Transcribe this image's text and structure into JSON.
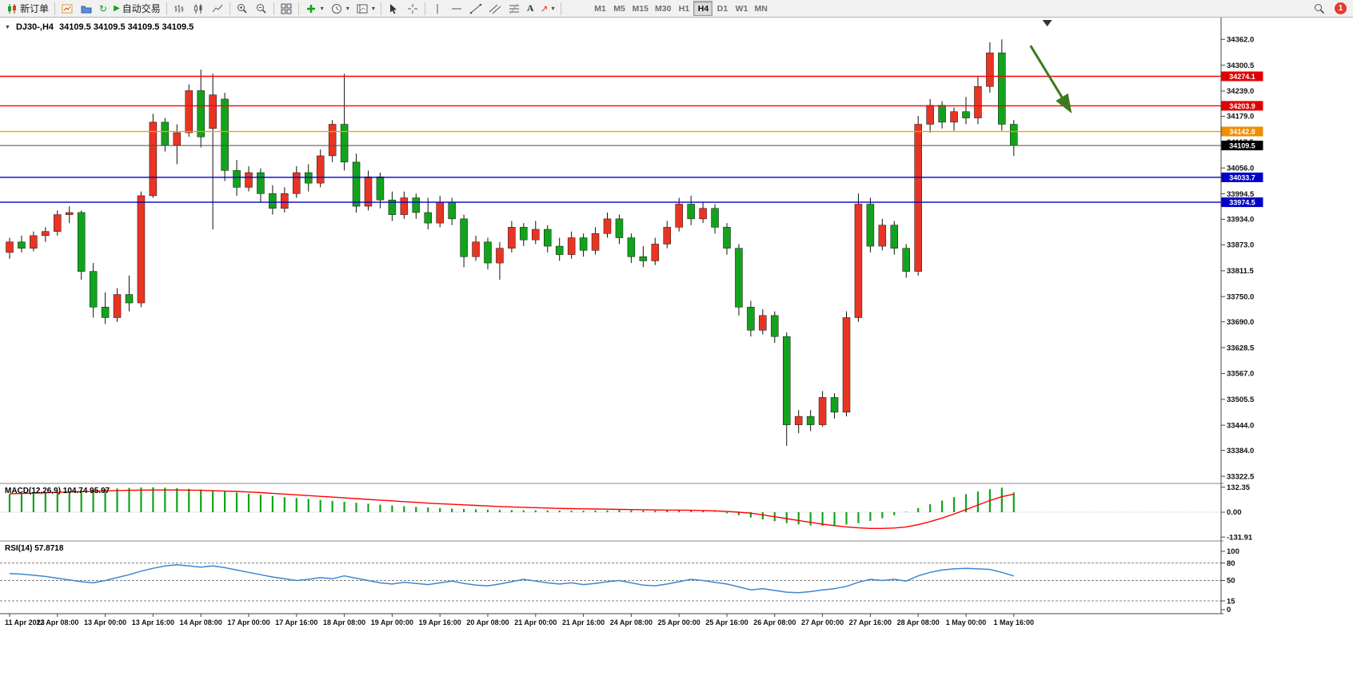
{
  "icons": {
    "collapse_triangle": "▼",
    "dropdown_caret": "▾",
    "refresh_glyph": "↻",
    "play_glyph": "▶",
    "arrow_glyph": "↗",
    "text_tool": "A"
  },
  "toolbar": {
    "new_order_label": "新订单",
    "auto_trading_label": "自动交易",
    "timeframes": [
      "M1",
      "M5",
      "M15",
      "M30",
      "H1",
      "H4",
      "D1",
      "W1",
      "MN"
    ],
    "active_timeframe": "H4",
    "notification_badge": "1"
  },
  "chart_header": {
    "symbol_period": "DJ30-,H4",
    "ohlc": "34109.5 34109.5 34109.5 34109.5"
  },
  "chart_data": [
    {
      "type": "candlestick",
      "title": "DJ30-,H4",
      "current_price": 34109.5,
      "up_color": "#ea3423",
      "down_color": "#12a31c",
      "ylim": [
        33315,
        34372
      ],
      "y_ticks": [
        34362.0,
        34300.5,
        34239.0,
        34179.0,
        34117.5,
        34056.0,
        33994.5,
        33934.0,
        33873.0,
        33811.5,
        33750.0,
        33690.0,
        33628.5,
        33567.0,
        33505.5,
        33444.0,
        33384.0,
        33322.5
      ],
      "hlines": [
        {
          "price": 34274.1,
          "color": "#ff0000",
          "tag": "#e00000"
        },
        {
          "price": 34203.9,
          "color": "#ff0000",
          "tag": "#e00000"
        },
        {
          "price": 34142.8,
          "color": "#ff9900",
          "tag": "#ef8e00"
        },
        {
          "price": 34109.5,
          "color": "#4d4d4d",
          "tag": "#000000",
          "current": true
        },
        {
          "price": 34033.7,
          "color": "#0000c8",
          "tag": "#0000c8"
        },
        {
          "price": 33974.5,
          "color": "#0000c8",
          "tag": "#0000c8"
        }
      ],
      "x_labels": [
        {
          "i": 0,
          "t": "11 Apr 2023"
        },
        {
          "i": 4,
          "t": "12 Apr 08:00"
        },
        {
          "i": 8,
          "t": "13 Apr 00:00"
        },
        {
          "i": 12,
          "t": "13 Apr 16:00"
        },
        {
          "i": 16,
          "t": "14 Apr 08:00"
        },
        {
          "i": 20,
          "t": "17 Apr 00:00"
        },
        {
          "i": 24,
          "t": "17 Apr 16:00"
        },
        {
          "i": 28,
          "t": "18 Apr 08:00"
        },
        {
          "i": 32,
          "t": "19 Apr 00:00"
        },
        {
          "i": 36,
          "t": "19 Apr 16:00"
        },
        {
          "i": 40,
          "t": "20 Apr 08:00"
        },
        {
          "i": 44,
          "t": "21 Apr 00:00"
        },
        {
          "i": 48,
          "t": "21 Apr 16:00"
        },
        {
          "i": 52,
          "t": "24 Apr 08:00"
        },
        {
          "i": 56,
          "t": "25 Apr 00:00"
        },
        {
          "i": 60,
          "t": "25 Apr 16:00"
        },
        {
          "i": 64,
          "t": "26 Apr 08:00"
        },
        {
          "i": 68,
          "t": "27 Apr 00:00"
        },
        {
          "i": 72,
          "t": "27 Apr 16:00"
        },
        {
          "i": 76,
          "t": "28 Apr 08:00"
        },
        {
          "i": 80,
          "t": "1 May 00:00"
        },
        {
          "i": 84,
          "t": "1 May 16:00"
        }
      ],
      "candles": [
        [
          33855,
          33890,
          33840,
          33880
        ],
        [
          33880,
          33895,
          33855,
          33865
        ],
        [
          33865,
          33905,
          33858,
          33895
        ],
        [
          33895,
          33915,
          33880,
          33905
        ],
        [
          33905,
          33955,
          33895,
          33945
        ],
        [
          33945,
          33965,
          33925,
          33950
        ],
        [
          33950,
          33955,
          33790,
          33810
        ],
        [
          33810,
          33830,
          33700,
          33725
        ],
        [
          33725,
          33760,
          33685,
          33700
        ],
        [
          33700,
          33770,
          33690,
          33755
        ],
        [
          33755,
          33800,
          33715,
          33735
        ],
        [
          33735,
          34000,
          33725,
          33990
        ],
        [
          33990,
          34185,
          33985,
          34165
        ],
        [
          34165,
          34175,
          34095,
          34110
        ],
        [
          34110,
          34160,
          34065,
          34140
        ],
        [
          34140,
          34255,
          34130,
          34240
        ],
        [
          34240,
          34290,
          34105,
          34130
        ],
        [
          34150,
          34280,
          33910,
          34230
        ],
        [
          34220,
          34235,
          34025,
          34050
        ],
        [
          34050,
          34075,
          33990,
          34010
        ],
        [
          34010,
          34060,
          34000,
          34045
        ],
        [
          34045,
          34055,
          33975,
          33995
        ],
        [
          33995,
          34015,
          33945,
          33960
        ],
        [
          33960,
          34010,
          33950,
          33995
        ],
        [
          33995,
          34060,
          33985,
          34045
        ],
        [
          34045,
          34065,
          34000,
          34020
        ],
        [
          34020,
          34100,
          34010,
          34085
        ],
        [
          34085,
          34170,
          34070,
          34160
        ],
        [
          34160,
          34280,
          34050,
          34070
        ],
        [
          34070,
          34090,
          33950,
          33965
        ],
        [
          33965,
          34050,
          33955,
          34035
        ],
        [
          34035,
          34045,
          33960,
          33980
        ],
        [
          33980,
          34000,
          33930,
          33945
        ],
        [
          33945,
          34000,
          33935,
          33985
        ],
        [
          33985,
          33995,
          33935,
          33950
        ],
        [
          33950,
          33985,
          33910,
          33925
        ],
        [
          33925,
          33990,
          33915,
          33975
        ],
        [
          33975,
          33985,
          33920,
          33935
        ],
        [
          33935,
          33945,
          33820,
          33845
        ],
        [
          33845,
          33895,
          33835,
          33880
        ],
        [
          33880,
          33890,
          33815,
          33830
        ],
        [
          33830,
          33880,
          33790,
          33865
        ],
        [
          33865,
          33930,
          33855,
          33915
        ],
        [
          33915,
          33925,
          33870,
          33885
        ],
        [
          33885,
          33930,
          33875,
          33910
        ],
        [
          33910,
          33920,
          33855,
          33870
        ],
        [
          33870,
          33890,
          33835,
          33850
        ],
        [
          33850,
          33905,
          33840,
          33890
        ],
        [
          33890,
          33900,
          33845,
          33860
        ],
        [
          33860,
          33915,
          33850,
          33900
        ],
        [
          33900,
          33950,
          33890,
          33935
        ],
        [
          33935,
          33945,
          33875,
          33890
        ],
        [
          33890,
          33900,
          33830,
          33845
        ],
        [
          33845,
          33870,
          33820,
          33835
        ],
        [
          33835,
          33890,
          33825,
          33875
        ],
        [
          33875,
          33930,
          33865,
          33915
        ],
        [
          33915,
          33985,
          33905,
          33970
        ],
        [
          33970,
          33990,
          33920,
          33935
        ],
        [
          33935,
          33975,
          33925,
          33960
        ],
        [
          33960,
          33970,
          33900,
          33915
        ],
        [
          33915,
          33925,
          33850,
          33865
        ],
        [
          33865,
          33875,
          33705,
          33725
        ],
        [
          33725,
          33740,
          33655,
          33670
        ],
        [
          33670,
          33720,
          33660,
          33705
        ],
        [
          33705,
          33715,
          33640,
          33655
        ],
        [
          33655,
          33665,
          33395,
          33445
        ],
        [
          33445,
          33480,
          33425,
          33465
        ],
        [
          33465,
          33480,
          33430,
          33445
        ],
        [
          33445,
          33525,
          33440,
          33510
        ],
        [
          33510,
          33520,
          33460,
          33475
        ],
        [
          33475,
          33715,
          33465,
          33700
        ],
        [
          33700,
          33995,
          33690,
          33970
        ],
        [
          33970,
          33985,
          33855,
          33870
        ],
        [
          33870,
          33935,
          33860,
          33920
        ],
        [
          33920,
          33930,
          33850,
          33865
        ],
        [
          33865,
          33875,
          33795,
          33810
        ],
        [
          33810,
          34180,
          33800,
          34160
        ],
        [
          34160,
          34220,
          34140,
          34205
        ],
        [
          34205,
          34215,
          34150,
          34165
        ],
        [
          34165,
          34200,
          34145,
          34190
        ],
        [
          34190,
          34225,
          34160,
          34175
        ],
        [
          34175,
          34275,
          34160,
          34250
        ],
        [
          34250,
          34355,
          34235,
          34330
        ],
        [
          34330,
          34362,
          34145,
          34160
        ],
        [
          34160,
          34170,
          34085,
          34109.5
        ]
      ],
      "annotation_arrow": {
        "from": {
          "bar": 85.4,
          "price": 34347
        },
        "to": {
          "bar": 88.7,
          "price": 34193
        },
        "color": "#3c7a1e"
      },
      "shift_marker_bar": 86.8
    },
    {
      "type": "macd_histogram",
      "label": "MACD(12,26,9) 104.74 95.97",
      "main_value": 104.74,
      "signal_value": 95.97,
      "ylim": [
        -140,
        140
      ],
      "y_ticks": [
        132.35,
        0,
        -131.91
      ],
      "hist_color": "#12a31c",
      "signal_color": "#ff0000",
      "histogram": [
        96,
        100,
        104,
        108,
        106,
        110,
        115,
        119,
        123,
        126,
        129,
        131,
        132,
        130,
        127,
        124,
        120,
        115,
        110,
        104,
        98,
        92,
        86,
        80,
        75,
        70,
        65,
        60,
        55,
        50,
        45,
        40,
        36,
        32,
        28,
        25,
        22,
        19,
        17,
        15,
        13,
        12,
        11,
        10,
        10,
        9,
        9,
        8,
        8,
        9,
        10,
        11,
        10,
        9,
        8,
        9,
        11,
        12,
        8,
        2,
        -6,
        -16,
        -28,
        -38,
        -48,
        -58,
        -65,
        -70,
        -72,
        -70,
        -66,
        -58,
        -46,
        -32,
        -16,
        2,
        22,
        42,
        62,
        80,
        96,
        110,
        122,
        130,
        104.74
      ],
      "signal": [
        97,
        99,
        101,
        103,
        105,
        107,
        109,
        111,
        113,
        115,
        116,
        117,
        118,
        118,
        118,
        117,
        116,
        114,
        112,
        110,
        107,
        104,
        100,
        96,
        92,
        88,
        84,
        80,
        76,
        72,
        68,
        64,
        60,
        56,
        52,
        48,
        45,
        42,
        39,
        36,
        33,
        30,
        28,
        26,
        24,
        22,
        20,
        19,
        18,
        17,
        16,
        15,
        14,
        13,
        12,
        11,
        11,
        10,
        9,
        7,
        4,
        0,
        -5,
        -14,
        -24,
        -34,
        -44,
        -54,
        -63,
        -71,
        -78,
        -83,
        -86,
        -86,
        -84,
        -78,
        -66,
        -50,
        -31,
        -10,
        14,
        38,
        62,
        82,
        95.97
      ]
    },
    {
      "type": "line",
      "label": "RSI(14) 57.8718",
      "current_value": 57.8718,
      "ylim": [
        0,
        100
      ],
      "y_ticks": [
        100,
        80,
        50,
        15,
        0
      ],
      "levels": [
        80,
        50,
        15
      ],
      "line_color": "#3e86d0",
      "values": [
        62,
        61,
        59,
        57,
        54,
        51,
        48,
        46,
        50,
        55,
        60,
        66,
        71,
        75,
        77,
        75,
        73,
        75,
        72,
        68,
        64,
        60,
        56,
        53,
        50,
        52,
        55,
        53,
        58,
        54,
        50,
        46,
        44,
        47,
        45,
        43,
        46,
        49,
        45,
        42,
        41,
        44,
        48,
        52,
        49,
        46,
        44,
        46,
        43,
        45,
        48,
        50,
        46,
        42,
        41,
        44,
        48,
        52,
        50,
        47,
        44,
        39,
        34,
        36,
        33,
        30,
        29,
        31,
        34,
        36,
        40,
        47,
        52,
        50,
        52,
        49,
        58,
        64,
        68,
        70,
        71,
        70,
        69,
        64,
        57.87
      ]
    }
  ]
}
